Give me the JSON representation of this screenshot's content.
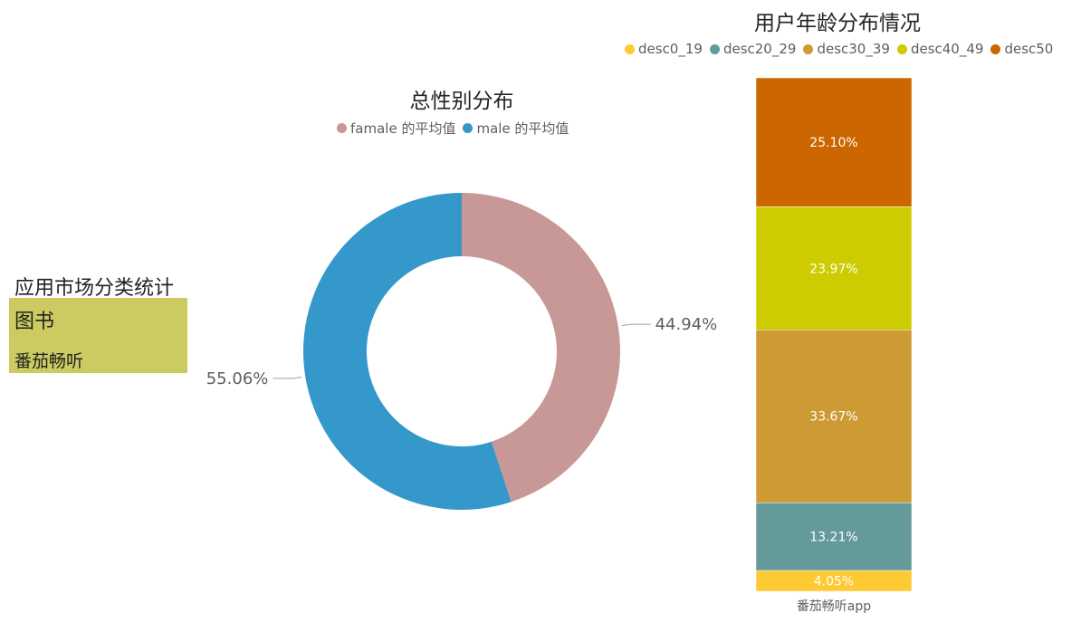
{
  "category_card": {
    "heading": "应用市场分类统计",
    "name": "图书",
    "app": "番茄畅听"
  },
  "chart_data": [
    {
      "type": "pie",
      "variant": "donut",
      "title": "总性别分布",
      "legend_position": "top-center",
      "slices": [
        {
          "name": "famale 的平均值",
          "value": 44.94,
          "label": "44.94%",
          "color": "#c89896"
        },
        {
          "name": "male 的平均值",
          "value": 55.06,
          "label": "55.06%",
          "color": "#3598cb"
        }
      ]
    },
    {
      "type": "bar",
      "variant": "100%-stacked-column",
      "title": "用户年龄分布情况",
      "legend_position": "top",
      "categories": [
        "番茄畅听app"
      ],
      "series": [
        {
          "name": "desc0_19",
          "values": [
            4.05
          ],
          "label": "4.05%",
          "color": "#fdca33"
        },
        {
          "name": "desc20_29",
          "values": [
            13.21
          ],
          "label": "13.21%",
          "color": "#659a9a"
        },
        {
          "name": "desc30_39",
          "values": [
            33.67
          ],
          "label": "33.67%",
          "color": "#cd9a33"
        },
        {
          "name": "desc40_49",
          "values": [
            23.97
          ],
          "label": "23.97%",
          "color": "#cccc00"
        },
        {
          "name": "desc50",
          "values": [
            25.1
          ],
          "label": "25.10%",
          "color": "#cc6600"
        }
      ]
    }
  ]
}
